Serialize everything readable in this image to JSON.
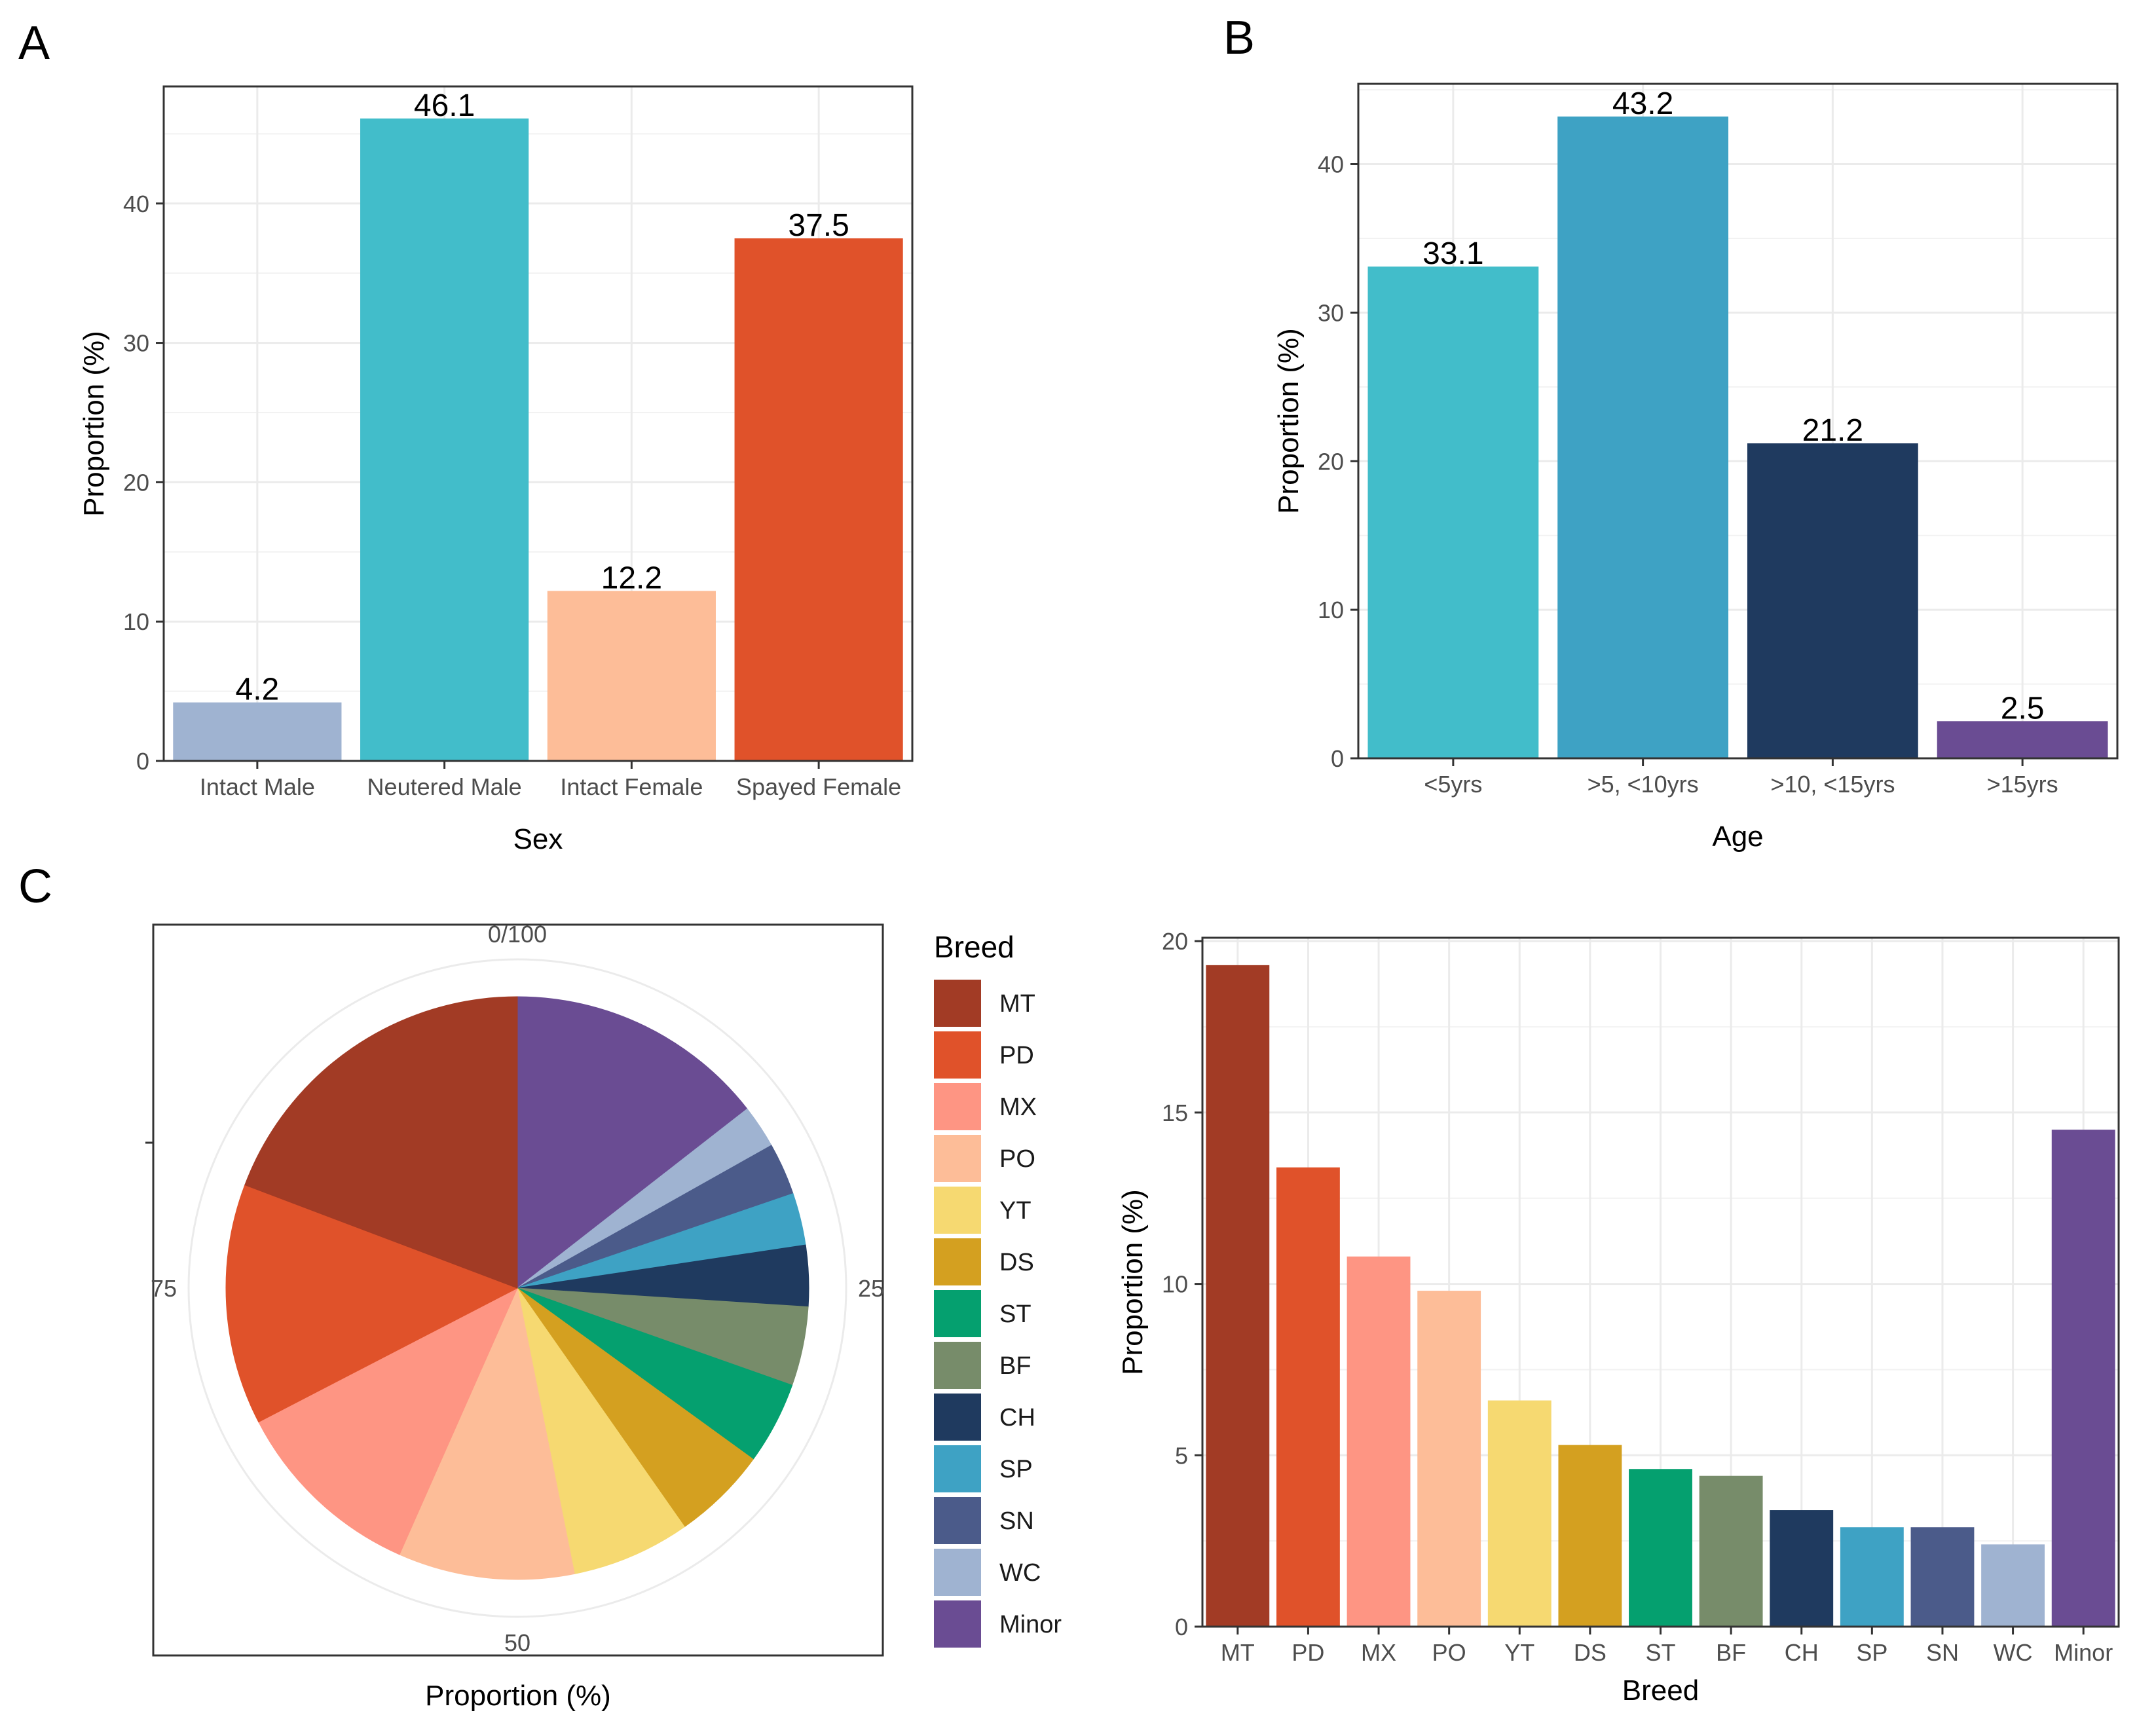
{
  "panels": {
    "a": "A",
    "b": "B",
    "c": "C"
  },
  "chart_data": [
    {
      "id": "A",
      "type": "bar",
      "categories": [
        "Intact Male",
        "Neutered Male",
        "Intact Female",
        "Spayed Female"
      ],
      "values": [
        4.2,
        46.1,
        12.2,
        37.5
      ],
      "labels": [
        "4.2",
        "46.1",
        "12.2",
        "37.5"
      ],
      "colors": [
        "#9fb3d1",
        "#42bdca",
        "#fdbd98",
        "#e0522a"
      ],
      "xlabel": "Sex",
      "ylabel": "Proportion (%)",
      "yticks": [
        0,
        10,
        20,
        30,
        40
      ],
      "ylim": [
        0,
        48.4
      ],
      "grid": true
    },
    {
      "id": "B",
      "type": "bar",
      "categories": [
        "<5yrs",
        ">5, <10yrs",
        ">10, <15yrs",
        ">15yrs"
      ],
      "values": [
        33.1,
        43.2,
        21.2,
        2.5
      ],
      "labels": [
        "33.1",
        "43.2",
        "21.2",
        "2.5"
      ],
      "colors": [
        "#42bdca",
        "#3ea2c4",
        "#1f3a5f",
        "#6a4c93"
      ],
      "xlabel": "Age",
      "ylabel": "Proportion (%)",
      "yticks": [
        0,
        10,
        20,
        30,
        40
      ],
      "ylim": [
        0,
        45.4
      ],
      "grid": true
    },
    {
      "id": "C-pie",
      "type": "pie",
      "categories": [
        "Minor",
        "WC",
        "SN",
        "SP",
        "CH",
        "BF",
        "ST",
        "DS",
        "YT",
        "PO",
        "MX",
        "PD",
        "MT"
      ],
      "values": [
        14.5,
        2.4,
        2.9,
        2.9,
        3.4,
        4.4,
        4.6,
        5.3,
        6.6,
        9.8,
        10.8,
        13.4,
        19.3
      ],
      "colors": [
        "#6a4c93",
        "#9fb3d1",
        "#4b5b8a",
        "#3ea2c4",
        "#1f3a5f",
        "#778c6a",
        "#05a06f",
        "#d4a020",
        "#f6d971",
        "#fdbd98",
        "#fe9583",
        "#e0522a",
        "#a23b25"
      ],
      "ticks": [
        "0/100",
        "25",
        "50",
        "75"
      ],
      "xlabel": "Proportion (%)",
      "legend_title": "Breed",
      "legend": [
        "MT",
        "PD",
        "MX",
        "PO",
        "YT",
        "DS",
        "ST",
        "BF",
        "CH",
        "SP",
        "SN",
        "WC",
        "Minor"
      ],
      "legend_colors": [
        "#a23b25",
        "#e0522a",
        "#fe9583",
        "#fdbd98",
        "#f6d971",
        "#d4a020",
        "#05a06f",
        "#778c6a",
        "#1f3a5f",
        "#3ea2c4",
        "#4b5b8a",
        "#9fb3d1",
        "#6a4c93"
      ],
      "legend_position": "right"
    },
    {
      "id": "C-bar",
      "type": "bar",
      "categories": [
        "MT",
        "PD",
        "MX",
        "PO",
        "YT",
        "DS",
        "ST",
        "BF",
        "CH",
        "SP",
        "SN",
        "WC",
        "Minor"
      ],
      "values": [
        19.3,
        13.4,
        10.8,
        9.8,
        6.6,
        5.3,
        4.6,
        4.4,
        3.4,
        2.9,
        2.9,
        2.4,
        14.5
      ],
      "colors": [
        "#a23b25",
        "#e0522a",
        "#fe9583",
        "#fdbd98",
        "#f6d971",
        "#d4a020",
        "#05a06f",
        "#778c6a",
        "#1f3a5f",
        "#3ea2c4",
        "#4b5b8a",
        "#9fb3d1",
        "#6a4c93"
      ],
      "xlabel": "Breed",
      "ylabel": "Proportion (%)",
      "yticks": [
        0,
        5,
        10,
        15,
        20
      ],
      "ylim": [
        0,
        20.1
      ],
      "grid": true
    }
  ]
}
